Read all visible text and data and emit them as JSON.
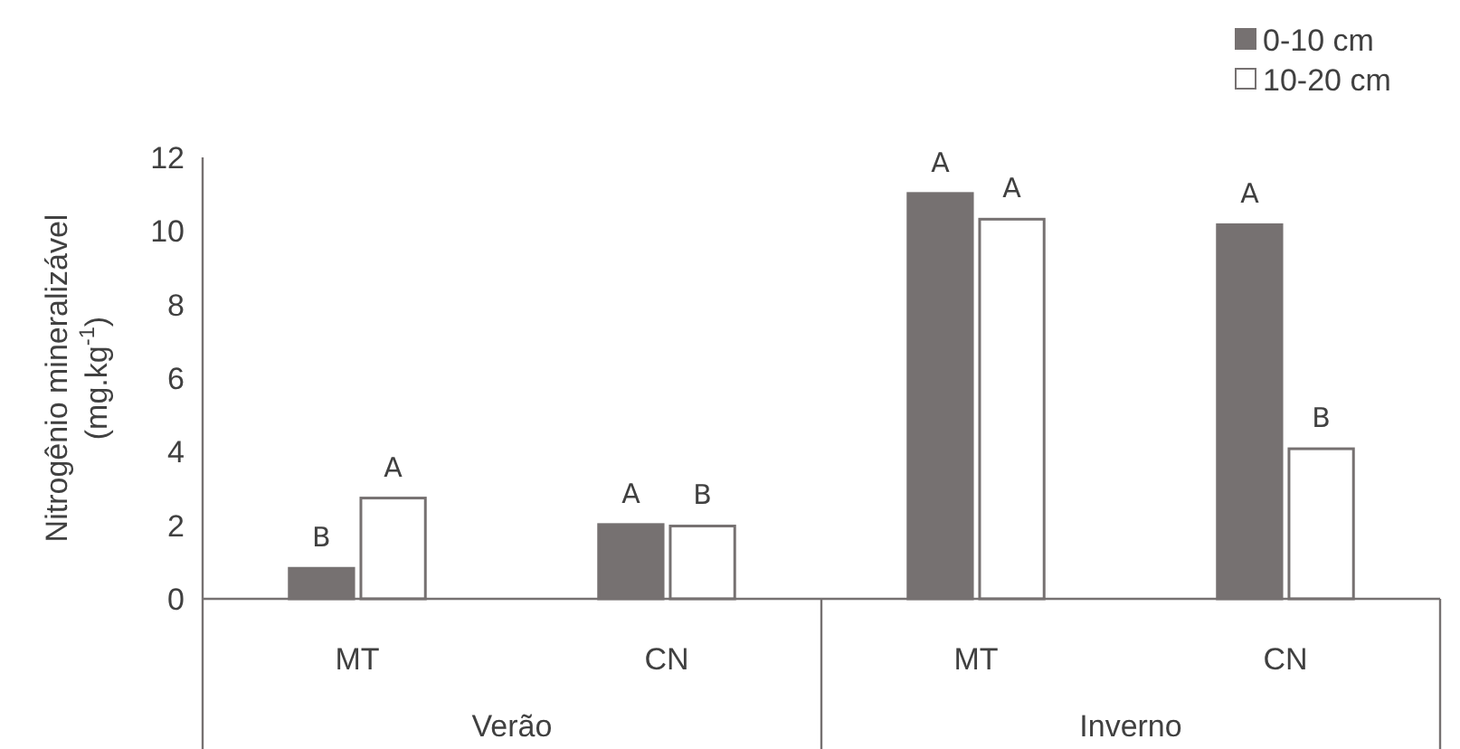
{
  "chart_data": {
    "type": "bar",
    "ylabel": "Nitrogênio mineralizável (mg.kg$^{-1}$)",
    "categories": [
      "MT",
      "CN",
      "MT",
      "CN"
    ],
    "series": [
      {
        "name": "0-10 cm",
        "color": "#767171",
        "values": [
          0.83,
          2.02,
          11.02,
          10.17
        ],
        "value_labels": [
          "B",
          "A",
          "A",
          "A"
        ]
      },
      {
        "name": "10-20 cm",
        "color": "#ffffff",
        "values": [
          2.74,
          1.98,
          10.32,
          4.08
        ],
        "value_labels": [
          "A",
          "B",
          "A",
          "B"
        ]
      }
    ],
    "annotations": [
      "Verão",
      "Inverno"
    ],
    "ylim": [
      0,
      12
    ],
    "yticks": [
      0,
      2,
      4,
      6,
      8,
      10,
      12
    ],
    "grid": false,
    "legend": "top right"
  }
}
